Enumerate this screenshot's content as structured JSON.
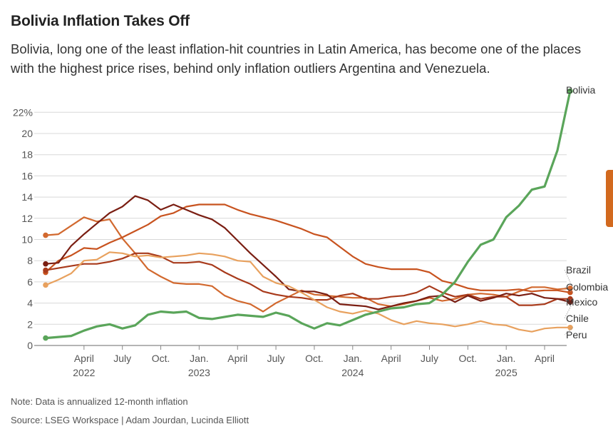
{
  "title": "Bolivia Inflation Takes Off",
  "subtitle": "Bolivia, long one of the least inflation-hit countries in Latin America, has become one of the places with the highest price rises, behind only inflation outliers Argentina and Venezuela.",
  "note": "Note: Data is annualized 12-month inflation",
  "source": "Source: LSEG Workspace | Adam Jourdan, Lucinda Elliott",
  "chart_data": {
    "type": "line",
    "title": "Bolivia Inflation Takes Off",
    "xlabel": "",
    "ylabel": "",
    "ylim": [
      0,
      22
    ],
    "y_ticks": [
      0,
      2,
      4,
      6,
      8,
      10,
      12,
      14,
      16,
      18,
      20,
      22
    ],
    "y_tick_labels": [
      "0",
      "2",
      "4",
      "6",
      "8",
      "10",
      "12",
      "14",
      "16",
      "18",
      "20",
      "22%"
    ],
    "grid": true,
    "x_start": "Jan 2022",
    "x_end": "May 2025",
    "x_ticks": [
      {
        "label": "April",
        "year": "2022",
        "index": 3
      },
      {
        "label": "July",
        "year": "",
        "index": 6
      },
      {
        "label": "Oct.",
        "year": "",
        "index": 9
      },
      {
        "label": "Jan.",
        "year": "2023",
        "index": 12
      },
      {
        "label": "April",
        "year": "",
        "index": 15
      },
      {
        "label": "July",
        "year": "",
        "index": 18
      },
      {
        "label": "Oct.",
        "year": "",
        "index": 21
      },
      {
        "label": "Jan.",
        "year": "2024",
        "index": 24
      },
      {
        "label": "April",
        "year": "",
        "index": 27
      },
      {
        "label": "July",
        "year": "",
        "index": 30
      },
      {
        "label": "Oct.",
        "year": "",
        "index": 33
      },
      {
        "label": "Jan.",
        "year": "2025",
        "index": 36
      },
      {
        "label": "April",
        "year": "",
        "index": 39
      }
    ],
    "series": [
      {
        "name": "Brazil",
        "color": "#d2692f",
        "values": [
          10.4,
          10.5,
          11.3,
          12.1,
          11.7,
          11.9,
          10.1,
          8.7,
          7.2,
          6.5,
          5.9,
          5.8,
          5.8,
          5.6,
          4.7,
          4.2,
          3.9,
          3.2,
          4.0,
          4.6,
          5.2,
          4.8,
          4.7,
          4.6,
          4.5,
          4.5,
          3.9,
          3.7,
          3.9,
          4.2,
          4.5,
          4.2,
          4.4,
          4.8,
          4.9,
          4.8,
          4.6,
          5.1,
          5.5,
          5.5,
          5.3,
          5.4
        ]
      },
      {
        "name": "Colombia",
        "color": "#c8531f",
        "values": [
          6.9,
          8.0,
          8.5,
          9.2,
          9.1,
          9.7,
          10.2,
          10.8,
          11.4,
          12.2,
          12.5,
          13.1,
          13.3,
          13.3,
          13.3,
          12.8,
          12.4,
          12.1,
          11.8,
          11.4,
          11.0,
          10.5,
          10.2,
          9.3,
          8.4,
          7.7,
          7.4,
          7.2,
          7.2,
          7.2,
          6.9,
          6.1,
          5.8,
          5.4,
          5.2,
          5.2,
          5.2,
          5.3,
          5.1,
          5.2,
          5.2,
          5.0
        ]
      },
      {
        "name": "Mexico",
        "color": "#a83a1b",
        "values": [
          7.1,
          7.3,
          7.5,
          7.7,
          7.7,
          7.9,
          8.2,
          8.7,
          8.7,
          8.4,
          7.8,
          7.8,
          7.9,
          7.6,
          6.9,
          6.3,
          5.8,
          5.1,
          4.8,
          4.6,
          4.5,
          4.3,
          4.3,
          4.7,
          4.9,
          4.4,
          4.4,
          4.6,
          4.7,
          5.0,
          5.6,
          5.0,
          4.6,
          4.8,
          4.4,
          4.6,
          4.6,
          3.8,
          3.8,
          3.9,
          4.4,
          4.4
        ]
      },
      {
        "name": "Chile",
        "color": "#7a1e12",
        "values": [
          7.7,
          7.8,
          9.4,
          10.5,
          11.5,
          12.5,
          13.1,
          14.1,
          13.7,
          12.8,
          13.3,
          12.8,
          12.3,
          11.9,
          11.1,
          9.9,
          8.7,
          7.6,
          6.5,
          5.3,
          5.1,
          5.1,
          4.8,
          3.9,
          3.8,
          3.7,
          3.4,
          3.7,
          4.0,
          4.2,
          4.6,
          4.7,
          4.1,
          4.7,
          4.2,
          4.5,
          4.9,
          4.7,
          4.9,
          4.5,
          4.4,
          4.1
        ]
      },
      {
        "name": "Peru",
        "color": "#e8a15e",
        "values": [
          5.7,
          6.2,
          6.8,
          8.0,
          8.1,
          8.8,
          8.7,
          8.4,
          8.5,
          8.3,
          8.4,
          8.5,
          8.7,
          8.6,
          8.4,
          8.0,
          7.9,
          6.5,
          5.9,
          5.6,
          5.0,
          4.3,
          3.6,
          3.2,
          3.0,
          3.3,
          3.0,
          2.4,
          2.0,
          2.3,
          2.1,
          2.0,
          1.8,
          2.0,
          2.3,
          2.0,
          1.9,
          1.5,
          1.3,
          1.6,
          1.7,
          1.7
        ]
      },
      {
        "name": "Bolivia",
        "color": "#5aa55a",
        "values": [
          0.7,
          0.8,
          0.9,
          1.4,
          1.8,
          2.0,
          1.6,
          1.9,
          2.9,
          3.2,
          3.1,
          3.2,
          2.6,
          2.5,
          2.7,
          2.9,
          2.8,
          2.7,
          3.1,
          2.8,
          2.1,
          1.6,
          2.1,
          1.9,
          2.4,
          2.9,
          3.2,
          3.5,
          3.6,
          3.9,
          4.0,
          4.8,
          6.0,
          7.9,
          9.5,
          10.0,
          12.1,
          13.2,
          14.7,
          15.0,
          18.4,
          24.0
        ]
      }
    ]
  }
}
